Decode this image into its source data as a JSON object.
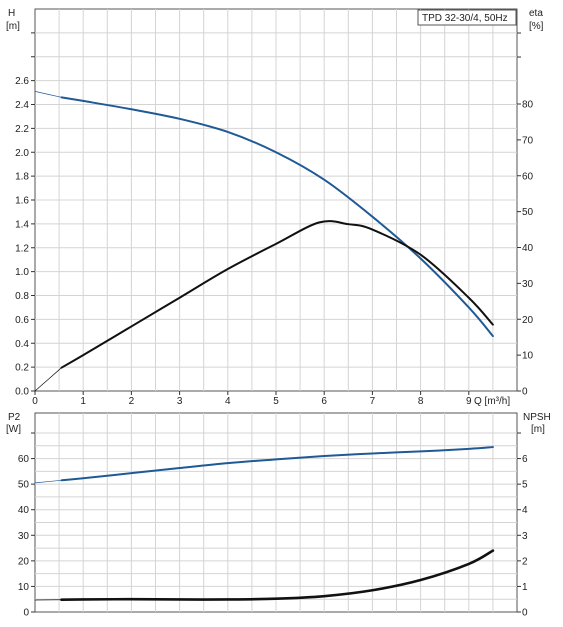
{
  "chart_data": [
    {
      "type": "line",
      "panel": "performance",
      "title": "TPD 32-30/4, 50Hz",
      "xlabel": "Q [m³/h]",
      "x_ticks": [
        "0",
        "1",
        "2",
        "3",
        "4",
        "5",
        "6",
        "7",
        "8",
        "9"
      ],
      "xlim": [
        0,
        10
      ],
      "left_axis": {
        "label_line1": "H",
        "label_line2": "[m]",
        "ticks": [
          "0.0",
          "0.2",
          "0.4",
          "0.6",
          "0.8",
          "1.0",
          "1.2",
          "1.4",
          "1.6",
          "1.8",
          "2.0",
          "2.2",
          "2.4",
          "2.6"
        ],
        "ylim": [
          0,
          3.2
        ]
      },
      "right_axis": {
        "label_line1": "eta",
        "label_line2": "[%]",
        "ticks": [
          "0",
          "10",
          "20",
          "30",
          "40",
          "50",
          "60",
          "70",
          "80"
        ],
        "ylim": [
          0,
          80
        ]
      },
      "grid": true,
      "series": [
        {
          "axis": "left",
          "color": "#1f5a96",
          "x": [
            0.55,
            1,
            2,
            3,
            4,
            5,
            6,
            7,
            8,
            9,
            9.5
          ],
          "y": [
            2.46,
            2.43,
            2.36,
            2.28,
            2.17,
            2.0,
            1.77,
            1.46,
            1.11,
            0.7,
            0.46
          ]
        },
        {
          "axis": "left",
          "color": "#1f5a96",
          "style": "thin",
          "x": [
            0,
            0.55
          ],
          "y": [
            2.51,
            2.46
          ]
        },
        {
          "axis": "right",
          "color": "#111111",
          "x": [
            0.55,
            1,
            2,
            3,
            4,
            5,
            5.9,
            6.5,
            7,
            8,
            9,
            9.5
          ],
          "y": [
            6.5,
            10,
            18,
            26,
            34,
            41,
            47,
            46.5,
            45,
            38,
            26,
            18.5
          ]
        },
        {
          "axis": "right",
          "color": "#111111",
          "style": "thin",
          "x": [
            0,
            0.55
          ],
          "y": [
            0,
            6.5
          ]
        }
      ]
    },
    {
      "type": "line",
      "panel": "power",
      "left_axis": {
        "label_line1": "P2",
        "label_line2": "[W]",
        "ticks": [
          "0",
          "10",
          "20",
          "30",
          "40",
          "50",
          "60"
        ],
        "ylim": [
          0,
          70
        ]
      },
      "right_axis": {
        "label_line1": "NPSH",
        "label_line2": "[m]",
        "ticks": [
          "0",
          "1",
          "2",
          "3",
          "4",
          "5",
          "6"
        ],
        "ylim": [
          0,
          7
        ]
      },
      "xlim": [
        0,
        10
      ],
      "grid": true,
      "series": [
        {
          "axis": "left",
          "color": "#1f5a96",
          "x": [
            0.55,
            1,
            2,
            3,
            4,
            5,
            6,
            7,
            8,
            9,
            9.5
          ],
          "y": [
            51.5,
            52.3,
            54.3,
            56.3,
            58.2,
            59.7,
            61,
            62,
            62.8,
            63.8,
            64.5
          ]
        },
        {
          "axis": "left",
          "color": "#1f5a96",
          "style": "thin",
          "x": [
            0,
            0.55
          ],
          "y": [
            50.5,
            51.5
          ]
        },
        {
          "axis": "right",
          "color": "#111111",
          "style": "thick",
          "x": [
            0.55,
            1,
            2,
            3,
            4,
            5,
            6,
            7,
            8,
            9,
            9.5
          ],
          "y": [
            0.48,
            0.49,
            0.5,
            0.49,
            0.49,
            0.52,
            0.62,
            0.85,
            1.25,
            1.88,
            2.4
          ]
        },
        {
          "axis": "right",
          "color": "#111111",
          "style": "thin",
          "x": [
            0,
            0.55
          ],
          "y": [
            0.47,
            0.48
          ]
        }
      ]
    }
  ]
}
